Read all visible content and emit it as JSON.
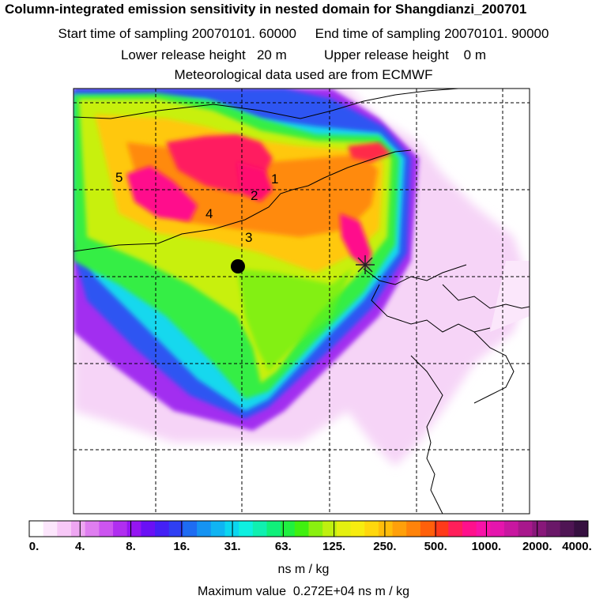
{
  "header": {
    "title": "Column-integrated emission sensitivity in nested domain for Shangdianzi_200701",
    "line2": "Start time of sampling 20070101. 60000     End time of sampling 20070101. 90000",
    "line3": "Lower release height   20 m          Upper release height    0 m",
    "line4": "Meteorological data used are from ECMWF"
  },
  "map": {
    "site_labels": [
      "1",
      "2",
      "3",
      "4",
      "5"
    ],
    "markers": [
      "receptor-dot",
      "release-star"
    ]
  },
  "colorbar": {
    "labels": [
      "0.",
      "4.",
      "8.",
      "16.",
      "31.",
      "63.",
      "125.",
      "250.",
      "500.",
      "1000.",
      "2000.",
      "4000."
    ],
    "colors": [
      "#ffffff",
      "#fce6fc",
      "#f7c8f7",
      "#eea6f2",
      "#df7ef0",
      "#cc55f0",
      "#b02ef0",
      "#9515f2",
      "#6a10f5",
      "#4420f5",
      "#2f3ff3",
      "#1e6cf2",
      "#1593f2",
      "#10b4f2",
      "#0bd6f0",
      "#0ef0e0",
      "#10f0b0",
      "#10f07a",
      "#20f040",
      "#40f010",
      "#8af010",
      "#bff010",
      "#e4f010",
      "#f7ec10",
      "#ffd70d",
      "#ffbd0a",
      "#ffa00a",
      "#ff830a",
      "#ff600a",
      "#ff3a1a",
      "#ff1f5a",
      "#ff108c",
      "#f812a8",
      "#e515ad",
      "#c817a0",
      "#a8188c",
      "#88187a",
      "#6a1868",
      "#4f1554",
      "#361040"
    ],
    "unit": "ns m / kg"
  },
  "footer": {
    "max_value": "Maximum value  0.272E+04 ns m / kg"
  }
}
